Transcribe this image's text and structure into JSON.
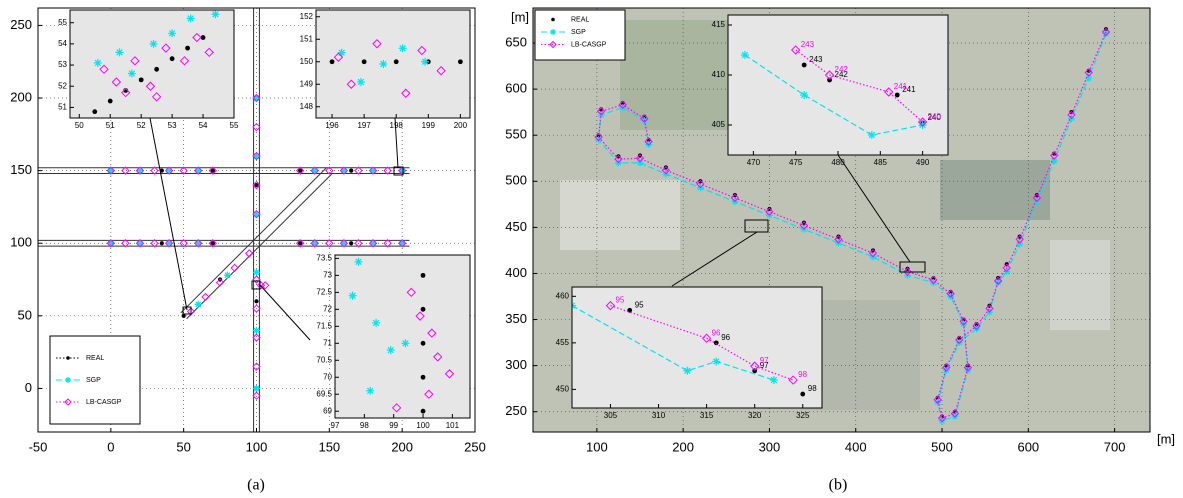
{
  "chart_data": [
    {
      "type": "scatter",
      "caption": "(a)",
      "xlim": [
        -50,
        250
      ],
      "ylim": [
        -30,
        262
      ],
      "xticks": [
        -50,
        0,
        50,
        100,
        150,
        200,
        250
      ],
      "yticks": [
        0,
        50,
        100,
        150,
        200,
        250
      ],
      "grid": true,
      "legend": "lower left",
      "connect": false,
      "roads": [
        [
          -50,
          148,
          205,
          148
        ],
        [
          -50,
          152,
          205,
          152
        ],
        [
          -50,
          98,
          205,
          98
        ],
        [
          -50,
          102,
          205,
          102
        ],
        [
          98,
          -30,
          98,
          262
        ],
        [
          102,
          -30,
          102,
          262
        ],
        [
          48,
          52,
          148,
          152
        ],
        [
          52,
          48,
          152,
          148
        ]
      ],
      "series": [
        {
          "name": "REAL",
          "color": "#000000",
          "marker": "dot",
          "linestyle": "dotted",
          "x": [
            0,
            35,
            70,
            130,
            165,
            200,
            0,
            35,
            70,
            130,
            165,
            200,
            100,
            100,
            100,
            100,
            50,
            75
          ],
          "values": [
            150,
            150,
            150,
            150,
            150,
            150,
            100,
            100,
            100,
            100,
            100,
            100,
            0,
            60,
            140,
            200,
            50,
            75
          ]
        },
        {
          "name": "SGP",
          "color": "#00e5ee",
          "marker": "star",
          "linestyle": "dashed",
          "x": [
            0,
            20,
            40,
            60,
            140,
            160,
            180,
            200,
            0,
            20,
            40,
            60,
            140,
            160,
            180,
            200,
            100,
            100,
            100,
            100,
            100,
            100,
            60,
            80
          ],
          "values": [
            150,
            150,
            150,
            150,
            150,
            150,
            150,
            150,
            100,
            100,
            100,
            100,
            100,
            100,
            100,
            100,
            0,
            40,
            80,
            120,
            160,
            200,
            58,
            78
          ]
        },
        {
          "name": "LB-CASGP",
          "color": "#ff00ff",
          "marker": "diamond",
          "linestyle": "dotted",
          "x": [
            0,
            10,
            20,
            30,
            40,
            50,
            60,
            70,
            130,
            140,
            150,
            160,
            170,
            180,
            190,
            200,
            0,
            10,
            20,
            30,
            40,
            50,
            60,
            70,
            130,
            140,
            150,
            160,
            170,
            180,
            190,
            200,
            100,
            100,
            100,
            100,
            100,
            100,
            100,
            100,
            100,
            100,
            55,
            65,
            75,
            85,
            95,
            103,
            106
          ],
          "values": [
            150,
            150,
            150,
            150,
            150,
            150,
            150,
            150,
            150,
            150,
            150,
            150,
            150,
            150,
            150,
            150,
            100,
            100,
            100,
            100,
            100,
            100,
            100,
            100,
            100,
            100,
            100,
            100,
            100,
            100,
            100,
            100,
            -5,
            15,
            35,
            55,
            75,
            120,
            140,
            160,
            180,
            200,
            53,
            63,
            73,
            83,
            93,
            71,
            71
          ]
        }
      ],
      "insets": [
        {
          "xlim": [
            49.7,
            55
          ],
          "ylim": [
            50.5,
            55.6
          ],
          "xticks": [
            50,
            51,
            52,
            53,
            54,
            55
          ],
          "yticks": [
            51,
            52,
            53,
            54,
            55
          ],
          "series": [
            {
              "color": "#000000",
              "marker": "dot",
              "x": [
                50.5,
                51,
                51.5,
                52,
                52.5,
                53,
                53.5,
                54
              ],
              "values": [
                50.8,
                51.3,
                51.8,
                52.3,
                52.8,
                53.3,
                53.8,
                54.3
              ]
            },
            {
              "color": "#00e5ee",
              "marker": "star",
              "x": [
                50.6,
                51.3,
                51.7,
                52.4,
                53,
                53.6,
                54.4
              ],
              "values": [
                53.1,
                53.6,
                52.6,
                54,
                54.5,
                55.2,
                55.4
              ]
            },
            {
              "color": "#ff00ff",
              "marker": "diamond",
              "x": [
                50.8,
                51.2,
                51.8,
                52.3,
                52.8,
                53.4,
                53.8,
                54.2,
                52.5,
                51.5
              ],
              "values": [
                52.8,
                52.2,
                53.2,
                52,
                53.8,
                53.2,
                54.3,
                53.6,
                51.5,
                51.7
              ]
            }
          ]
        },
        {
          "xlim": [
            195.5,
            200.3
          ],
          "ylim": [
            147.5,
            152.3
          ],
          "xticks": [
            196,
            197,
            198,
            199,
            200
          ],
          "yticks": [
            148,
            149,
            150,
            151,
            152
          ],
          "series": [
            {
              "color": "#000000",
              "marker": "dot",
              "x": [
                196,
                197,
                198,
                199,
                200
              ],
              "values": [
                150,
                150,
                150,
                150,
                150
              ]
            },
            {
              "color": "#00e5ee",
              "marker": "star",
              "x": [
                196.3,
                196.9,
                197.6,
                198.2,
                198.9
              ],
              "values": [
                150.4,
                149.1,
                149.9,
                150.6,
                150
              ]
            },
            {
              "color": "#ff00ff",
              "marker": "diamond",
              "x": [
                196.2,
                196.6,
                197.4,
                198.3,
                198.8,
                199.4
              ],
              "values": [
                150.2,
                149,
                150.8,
                148.6,
                150.5,
                149.6
              ]
            }
          ]
        },
        {
          "xlim": [
            97,
            101.6
          ],
          "ylim": [
            68.8,
            73.6
          ],
          "xticks": [
            97,
            98,
            99,
            100,
            101
          ],
          "yticks": [
            69,
            69.5,
            70,
            70.5,
            71,
            71.5,
            72,
            72.5,
            73,
            73.5
          ],
          "series": [
            {
              "color": "#000000",
              "marker": "dot",
              "x": [
                100,
                100,
                100,
                100,
                100
              ],
              "values": [
                69,
                70,
                71,
                72,
                73
              ]
            },
            {
              "color": "#00e5ee",
              "marker": "star",
              "x": [
                97.8,
                98.4,
                98.9,
                99.4,
                98.2,
                97.6
              ],
              "values": [
                73.4,
                71.6,
                70.8,
                71,
                69.6,
                72.4
              ]
            },
            {
              "color": "#ff00ff",
              "marker": "diamond",
              "x": [
                99.1,
                99.6,
                100.3,
                100.5,
                100.9,
                99.9,
                100.2
              ],
              "values": [
                69.1,
                72.5,
                71.3,
                70.6,
                70.1,
                71.8,
                69.5
              ]
            }
          ]
        }
      ]
    },
    {
      "type": "scatter",
      "caption": "(b)",
      "xlabel": "[m]",
      "ylabel": "[m]",
      "xlim": [
        26,
        741
      ],
      "ylim": [
        228,
        688
      ],
      "xticks": [
        100,
        200,
        300,
        400,
        500,
        600,
        700
      ],
      "yticks": [
        250,
        300,
        350,
        400,
        450,
        500,
        550,
        600,
        650
      ],
      "grid": true,
      "legend": "upper left",
      "connect": true,
      "series": [
        {
          "name": "REAL",
          "color": "#000000",
          "marker": "dot",
          "linestyle": "none",
          "x": [
            690,
            670,
            650,
            630,
            610,
            590,
            575,
            565,
            555,
            540,
            520,
            505,
            495,
            500,
            515,
            530,
            525,
            510,
            490,
            460,
            420,
            380,
            340,
            300,
            260,
            220,
            180,
            150,
            125,
            102,
            105,
            130,
            155,
            160
          ],
          "values": [
            665,
            620,
            575,
            530,
            485,
            440,
            410,
            395,
            365,
            345,
            330,
            300,
            265,
            245,
            250,
            300,
            350,
            380,
            395,
            405,
            425,
            440,
            455,
            470,
            485,
            500,
            515,
            528,
            527,
            550,
            578,
            585,
            570,
            545
          ]
        },
        {
          "name": "SGP",
          "color": "#00e5ee",
          "marker": "star",
          "linestyle": "dashed",
          "x": [
            690,
            670,
            650,
            630,
            610,
            590,
            575,
            565,
            555,
            540,
            520,
            505,
            495,
            500,
            515,
            530,
            525,
            510,
            490,
            460,
            420,
            380,
            340,
            300,
            260,
            220,
            180,
            150,
            125,
            102,
            105,
            130,
            155,
            160
          ],
          "values": [
            660,
            612,
            568,
            522,
            478,
            432,
            402,
            390,
            358,
            340,
            325,
            295,
            260,
            240,
            245,
            295,
            345,
            375,
            390,
            398,
            418,
            433,
            448,
            463,
            478,
            493,
            508,
            520,
            520,
            545,
            572,
            580,
            566,
            540
          ]
        },
        {
          "name": "LB-CASGP",
          "color": "#ff00ff",
          "marker": "diamond",
          "linestyle": "dotted",
          "x": [
            690,
            670,
            650,
            630,
            610,
            590,
            575,
            565,
            555,
            540,
            520,
            505,
            495,
            500,
            515,
            530,
            525,
            510,
            490,
            460,
            420,
            380,
            340,
            300,
            260,
            220,
            180,
            150,
            125,
            102,
            105,
            130,
            155,
            160
          ],
          "values": [
            662,
            618,
            572,
            528,
            482,
            437,
            406,
            392,
            362,
            343,
            328,
            298,
            263,
            243,
            248,
            298,
            348,
            378,
            393,
            402,
            422,
            437,
            452,
            467,
            482,
            497,
            512,
            525,
            524,
            548,
            576,
            583,
            568,
            543
          ]
        }
      ],
      "insets": [
        {
          "xlim": [
            467,
            493
          ],
          "ylim": [
            402,
            416
          ],
          "xticks": [
            470,
            475,
            480,
            485,
            490
          ],
          "yticks": [
            405,
            410,
            415
          ],
          "series": [
            {
              "color": "#000000",
              "marker": "dot",
              "x": [
                476,
                479,
                487,
                490
              ],
              "values": [
                411,
                409.5,
                408,
                405.2
              ],
              "labels": [
                "243",
                "242",
                "241",
                "240"
              ]
            },
            {
              "color": "#00e5ee",
              "marker": "star",
              "linestyle": "dashed",
              "x": [
                469,
                476,
                484,
                490
              ],
              "values": [
                412,
                408,
                404,
                405
              ]
            },
            {
              "color": "#ff00ff",
              "marker": "diamond",
              "linestyle": "dotted",
              "x": [
                475,
                479,
                486,
                490
              ],
              "values": [
                412.5,
                410,
                408.3,
                405.3
              ],
              "labels": [
                "243",
                "242",
                "241",
                "240"
              ]
            }
          ]
        },
        {
          "xlim": [
            301,
            327
          ],
          "ylim": [
            448,
            461
          ],
          "xticks": [
            305,
            310,
            315,
            320,
            325
          ],
          "yticks": [
            450,
            455,
            460
          ],
          "series": [
            {
              "color": "#000000",
              "marker": "dot",
              "x": [
                307,
                316,
                320,
                325
              ],
              "values": [
                458.5,
                455,
                452,
                449.5
              ],
              "labels": [
                "95",
                "96",
                "97",
                "98"
              ]
            },
            {
              "color": "#00e5ee",
              "marker": "star",
              "linestyle": "dashed",
              "x": [
                301,
                313,
                316,
                322
              ],
              "values": [
                459,
                452,
                453,
                451
              ]
            },
            {
              "color": "#ff00ff",
              "marker": "diamond",
              "linestyle": "dotted",
              "x": [
                305,
                315,
                320,
                324
              ],
              "values": [
                459,
                455.5,
                452.5,
                451
              ],
              "labels": [
                "95",
                "96",
                "97",
                "98"
              ]
            }
          ]
        }
      ]
    }
  ]
}
